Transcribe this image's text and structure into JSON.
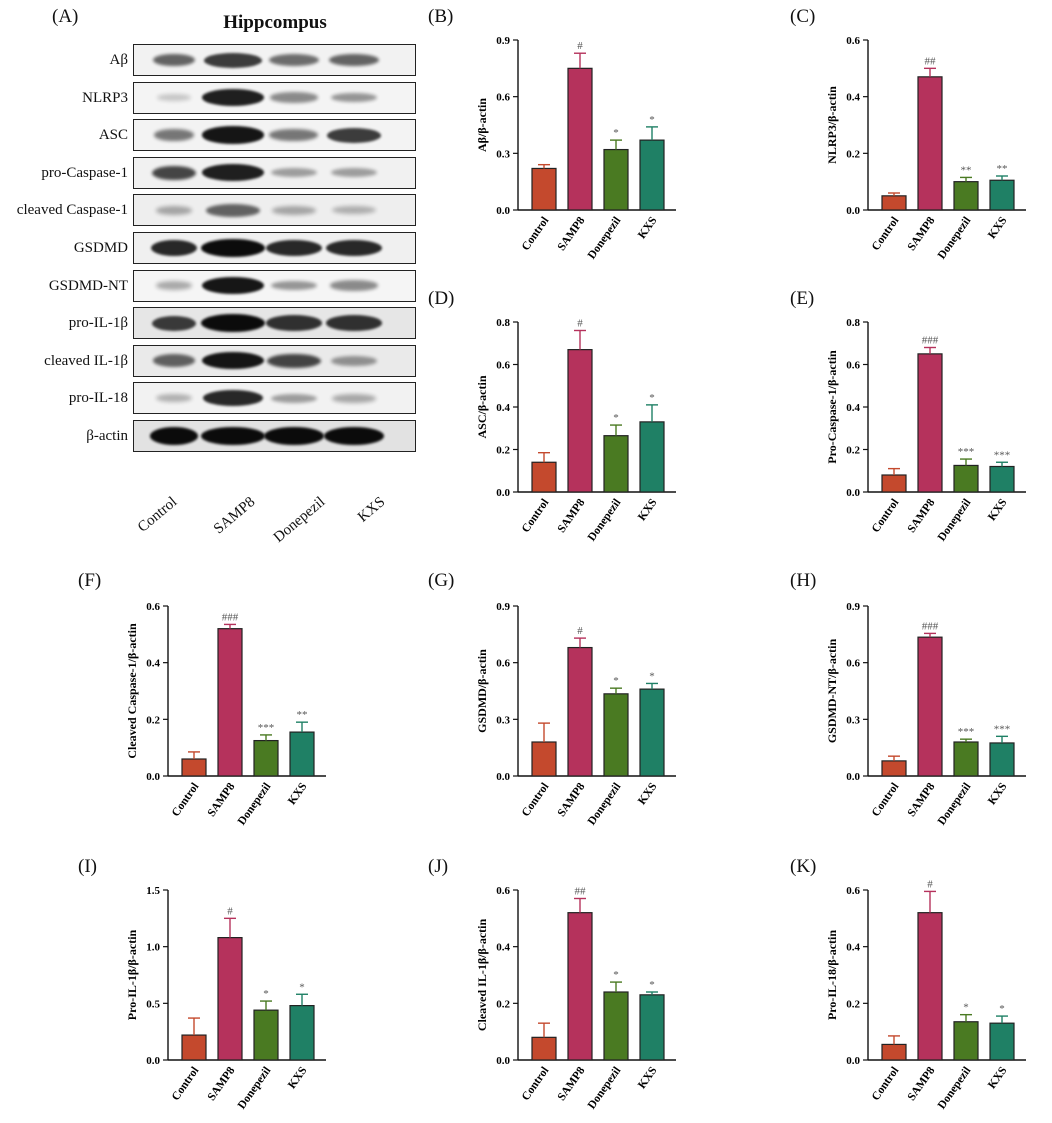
{
  "blot": {
    "panel_label": "(A)",
    "title": "Hippcompus",
    "rows": [
      {
        "label": "Aβ",
        "bands": [
          0.55,
          0.75,
          0.5,
          0.55
        ],
        "bg": "#f2f2f2"
      },
      {
        "label": "NLRP3",
        "bands": [
          0.05,
          0.9,
          0.35,
          0.3
        ],
        "bg": "#f4f4f4"
      },
      {
        "label": "ASC",
        "bands": [
          0.45,
          0.95,
          0.45,
          0.75
        ],
        "bg": "#f3f3f3"
      },
      {
        "label": "pro-Caspase-1",
        "bands": [
          0.7,
          0.9,
          0.25,
          0.25
        ],
        "bg": "#f1f1f1"
      },
      {
        "label": "cleaved Caspase-1",
        "bands": [
          0.2,
          0.55,
          0.2,
          0.15
        ],
        "bg": "#eeeeee"
      },
      {
        "label": "GSDMD",
        "bands": [
          0.85,
          1.0,
          0.85,
          0.85
        ],
        "bg": "#f0f0f0"
      },
      {
        "label": "GSDMD-NT",
        "bands": [
          0.2,
          0.95,
          0.3,
          0.35
        ],
        "bg": "#f5f5f5"
      },
      {
        "label": "pro-IL-1β",
        "bands": [
          0.75,
          1.0,
          0.8,
          0.8
        ],
        "bg": "#e6e6e6"
      },
      {
        "label": "cleaved IL-1β",
        "bands": [
          0.55,
          0.95,
          0.7,
          0.3
        ],
        "bg": "#eaeaea"
      },
      {
        "label": "pro-IL-18",
        "bands": [
          0.15,
          0.85,
          0.25,
          0.2
        ],
        "bg": "#f2f2f2"
      },
      {
        "label": "β-actin",
        "bands": [
          1.0,
          1.0,
          1.0,
          1.0
        ],
        "bg": "#e2e2e2"
      }
    ],
    "groups": [
      "Control",
      "SAMP8",
      "Donepezil",
      "KXS"
    ]
  },
  "colors": {
    "Control": "#c4492d",
    "SAMP8": "#b5325c",
    "Donepezil": "#4a7a22",
    "KXS": "#1f8065"
  },
  "chart_data": [
    {
      "panel": "(B)",
      "type": "bar",
      "ylabel": "Aβ/β-actin",
      "categories": [
        "Control",
        "SAMP8",
        "Donepezil",
        "KXS"
      ],
      "values": [
        0.22,
        0.75,
        0.32,
        0.37
      ],
      "errors": [
        0.02,
        0.08,
        0.05,
        0.07
      ],
      "marks": [
        "",
        "#",
        "*",
        "*"
      ],
      "ylim": [
        0,
        0.9
      ],
      "yticks": [
        "0.0",
        "0.3",
        "0.6",
        "0.9"
      ]
    },
    {
      "panel": "(C)",
      "type": "bar",
      "ylabel": "NLRP3/β-actin",
      "categories": [
        "Control",
        "SAMP8",
        "Donepezil",
        "KXS"
      ],
      "values": [
        0.05,
        0.47,
        0.1,
        0.105
      ],
      "errors": [
        0.01,
        0.03,
        0.015,
        0.015
      ],
      "marks": [
        "",
        "##",
        "**",
        "**"
      ],
      "ylim": [
        0,
        0.6
      ],
      "yticks": [
        "0.0",
        "0.2",
        "0.4",
        "0.6"
      ]
    },
    {
      "panel": "(D)",
      "type": "bar",
      "ylabel": "ASC/β-actin",
      "categories": [
        "Control",
        "SAMP8",
        "Donepezil",
        "KXS"
      ],
      "values": [
        0.14,
        0.67,
        0.265,
        0.33
      ],
      "errors": [
        0.045,
        0.09,
        0.05,
        0.08
      ],
      "marks": [
        "",
        "#",
        "*",
        "*"
      ],
      "ylim": [
        0,
        0.8
      ],
      "yticks": [
        "0.0",
        "0.2",
        "0.4",
        "0.6",
        "0.8"
      ]
    },
    {
      "panel": "(E)",
      "type": "bar",
      "ylabel": "Pro-Caspase-1/β-actin",
      "categories": [
        "Control",
        "SAMP8",
        "Donepezil",
        "KXS"
      ],
      "values": [
        0.08,
        0.65,
        0.125,
        0.12
      ],
      "errors": [
        0.03,
        0.03,
        0.03,
        0.02
      ],
      "marks": [
        "",
        "###",
        "***",
        "***"
      ],
      "ylim": [
        0,
        0.8
      ],
      "yticks": [
        "0.0",
        "0.2",
        "0.4",
        "0.6",
        "0.8"
      ]
    },
    {
      "panel": "(F)",
      "type": "bar",
      "ylabel": "Cleaved Caspase-1/β-actin",
      "categories": [
        "Control",
        "SAMP8",
        "Donepezil",
        "KXS"
      ],
      "values": [
        0.06,
        0.52,
        0.125,
        0.155
      ],
      "errors": [
        0.025,
        0.015,
        0.02,
        0.035
      ],
      "marks": [
        "",
        "###",
        "***",
        "**"
      ],
      "ylim": [
        0,
        0.6
      ],
      "yticks": [
        "0.0",
        "0.2",
        "0.4",
        "0.6"
      ]
    },
    {
      "panel": "(G)",
      "type": "bar",
      "ylabel": "GSDMD/β-actin",
      "categories": [
        "Control",
        "SAMP8",
        "Donepezil",
        "KXS"
      ],
      "values": [
        0.18,
        0.68,
        0.435,
        0.46
      ],
      "errors": [
        0.1,
        0.05,
        0.03,
        0.03
      ],
      "marks": [
        "",
        "#",
        "*",
        "*"
      ],
      "ylim": [
        0,
        0.9
      ],
      "yticks": [
        "0.0",
        "0.3",
        "0.6",
        "0.9"
      ]
    },
    {
      "panel": "(H)",
      "type": "bar",
      "ylabel": "GSDMD-NT/β-actin",
      "categories": [
        "Control",
        "SAMP8",
        "Donepezil",
        "KXS"
      ],
      "values": [
        0.08,
        0.735,
        0.18,
        0.175
      ],
      "errors": [
        0.025,
        0.02,
        0.015,
        0.035
      ],
      "marks": [
        "",
        "###",
        "***",
        "***"
      ],
      "ylim": [
        0,
        0.9
      ],
      "yticks": [
        "0.0",
        "0.3",
        "0.6",
        "0.9"
      ]
    },
    {
      "panel": "(I)",
      "type": "bar",
      "ylabel": "Pro-IL-1β/β-actin",
      "categories": [
        "Control",
        "SAMP8",
        "Donepezil",
        "KXS"
      ],
      "values": [
        0.22,
        1.08,
        0.44,
        0.48
      ],
      "errors": [
        0.15,
        0.17,
        0.08,
        0.1
      ],
      "marks": [
        "",
        "#",
        "*",
        "*"
      ],
      "ylim": [
        0,
        1.5
      ],
      "yticks": [
        "0.0",
        "0.5",
        "1.0",
        "1.5"
      ]
    },
    {
      "panel": "(J)",
      "type": "bar",
      "ylabel": "Cleaved IL-1β/β-actin",
      "categories": [
        "Control",
        "SAMP8",
        "Donepezil",
        "KXS"
      ],
      "values": [
        0.08,
        0.52,
        0.24,
        0.23
      ],
      "errors": [
        0.05,
        0.05,
        0.035,
        0.01
      ],
      "marks": [
        "",
        "##",
        "*",
        "*"
      ],
      "ylim": [
        0,
        0.6
      ],
      "yticks": [
        "0.0",
        "0.2",
        "0.4",
        "0.6"
      ]
    },
    {
      "panel": "(K)",
      "type": "bar",
      "ylabel": "Pro-IL-18/β-actin",
      "categories": [
        "Control",
        "SAMP8",
        "Donepezil",
        "KXS"
      ],
      "values": [
        0.055,
        0.52,
        0.135,
        0.13
      ],
      "errors": [
        0.03,
        0.075,
        0.025,
        0.025
      ],
      "marks": [
        "",
        "#",
        "*",
        "*"
      ],
      "ylim": [
        0,
        0.6
      ],
      "yticks": [
        "0.0",
        "0.2",
        "0.4",
        "0.6"
      ]
    }
  ]
}
